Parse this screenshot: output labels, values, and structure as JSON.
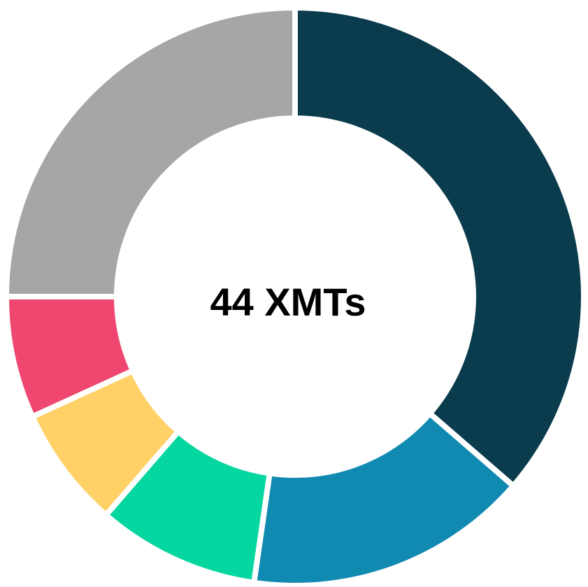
{
  "chart_data": {
    "type": "donut",
    "center_label": "44 XMTs",
    "values": [
      16,
      7,
      4,
      3,
      3,
      11
    ],
    "colors": [
      "#0b3c4d",
      "#118ab2",
      "#06d6a0",
      "#ffd166",
      "#ef476f",
      "#a6a6a6"
    ]
  }
}
